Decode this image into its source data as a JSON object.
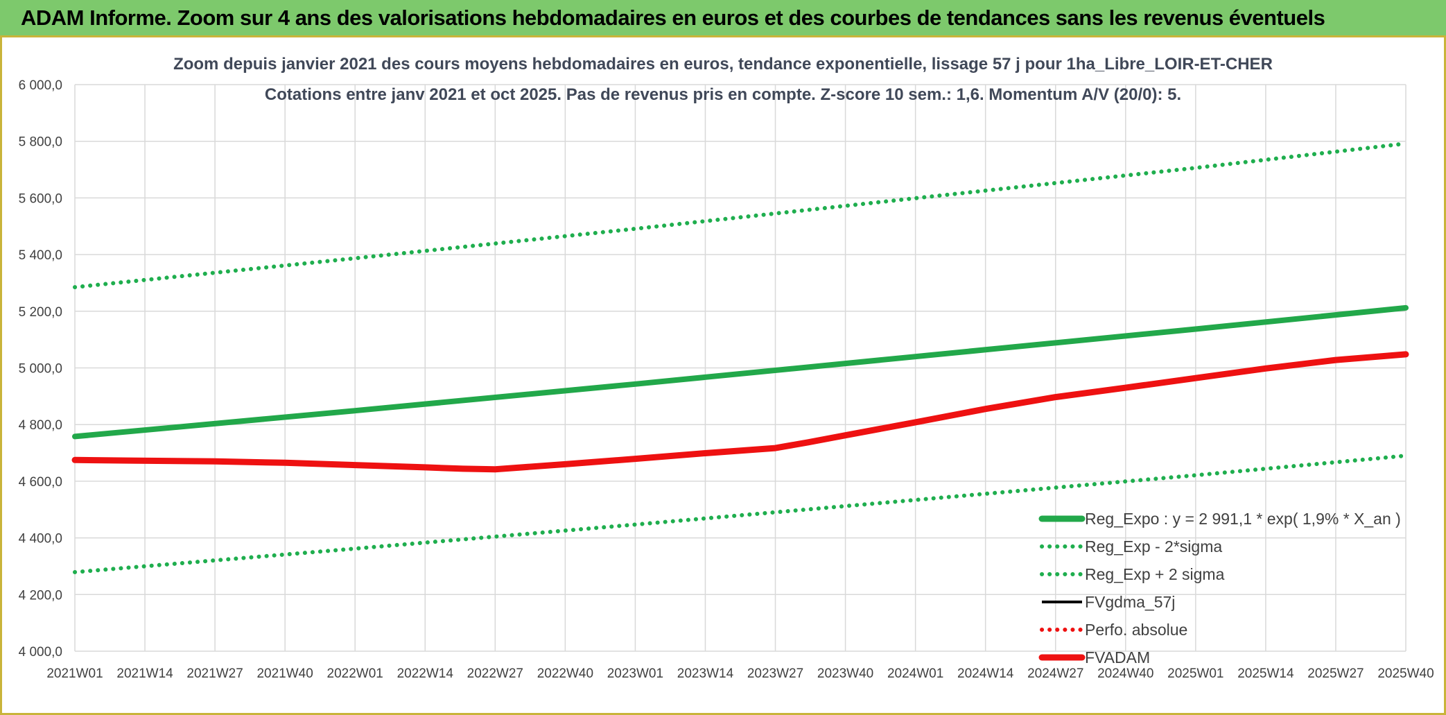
{
  "header": {
    "banner_title": "ADAM Informe. Zoom sur 4 ans des valorisations hebdomadaires en euros et des courbes de tendances sans les revenus éventuels"
  },
  "colors": {
    "banner_bg": "#7dc96c",
    "green": "#22a84a",
    "green_dotted": "#1fae4e",
    "red": "#ee1111",
    "black": "#000000",
    "grid": "#d9d9d9"
  },
  "chart_data": {
    "type": "line",
    "title_lines": [
      "Zoom depuis janvier 2021 des cours moyens hebdomadaires en euros, tendance exponentielle, lissage 57 j pour 1ha_Libre_LOIR-ET-CHER",
      "Cotations entre janv 2021 et oct 2025. Pas de revenus pris en compte. Z-score 10 sem.: 1,6. Momentum A/V (20/0): 5."
    ],
    "ylim": [
      4000,
      6000
    ],
    "y_ticks": [
      "4 000,0",
      "4 200,0",
      "4 400,0",
      "4 600,0",
      "4 800,0",
      "5 000,0",
      "5 200,0",
      "5 400,0",
      "5 600,0",
      "5 800,0",
      "6 000,0"
    ],
    "y_tick_values": [
      4000,
      4200,
      4400,
      4600,
      4800,
      5000,
      5200,
      5400,
      5600,
      5800,
      6000
    ],
    "x_ticks": [
      "2021W01",
      "2021W14",
      "2021W27",
      "2021W40",
      "2022W01",
      "2022W14",
      "2022W27",
      "2022W40",
      "2023W01",
      "2023W14",
      "2023W27",
      "2023W40",
      "2024W01",
      "2024W14",
      "2024W27",
      "2024W40",
      "2025W01",
      "2025W14",
      "2025W27",
      "2025W40"
    ],
    "x_tick_index": [
      0,
      13,
      26,
      39,
      52,
      65,
      78,
      91,
      104,
      117,
      130,
      143,
      156,
      169,
      182,
      195,
      208,
      221,
      234,
      247
    ],
    "x_max_index": 247,
    "series": [
      {
        "name": "Reg_Expo : y = 2 991,1 * exp( 1,9% *  X_an )",
        "style": "solid-thick",
        "color": "#22a84a",
        "x": [
          0,
          52,
          104,
          156,
          208,
          247
        ],
        "values": [
          4758,
          4849,
          4943,
          5040,
          5137,
          5212
        ]
      },
      {
        "name": "Reg_Exp - 2*sigma",
        "style": "dotted",
        "color": "#1fae4e",
        "x": [
          0,
          52,
          104,
          156,
          208,
          247
        ],
        "values": [
          4279,
          4362,
          4447,
          4534,
          4621,
          4690
        ]
      },
      {
        "name": "Reg_Exp + 2 sigma",
        "style": "dotted",
        "color": "#1fae4e",
        "x": [
          0,
          52,
          104,
          156,
          208,
          247
        ],
        "values": [
          5285,
          5387,
          5491,
          5599,
          5706,
          5792
        ]
      },
      {
        "name": "FVgdma_57j",
        "style": "solid",
        "color": "#000000",
        "x": [
          0,
          10,
          26,
          39,
          52,
          65,
          72,
          78,
          91,
          104,
          117,
          130,
          136,
          143,
          156,
          169,
          182,
          195,
          208,
          221,
          234,
          247
        ],
        "values": [
          4675,
          4673,
          4670,
          4665,
          4658,
          4650,
          4645,
          4643,
          4660,
          4680,
          4700,
          4722,
          4740,
          4763,
          4808,
          4856,
          4897,
          4930,
          4964,
          4998,
          5028,
          5048
        ]
      },
      {
        "name": "Perfo. absolue",
        "style": "dotted",
        "color": "#ee1111",
        "x": [],
        "values": []
      },
      {
        "name": "FVADAM",
        "style": "solid-thick",
        "color": "#ee1111",
        "x": [
          0,
          10,
          26,
          39,
          52,
          65,
          72,
          78,
          91,
          104,
          117,
          130,
          136,
          143,
          156,
          169,
          182,
          195,
          208,
          221,
          234,
          247
        ],
        "values": [
          4675,
          4673,
          4670,
          4665,
          4657,
          4649,
          4644,
          4642,
          4660,
          4679,
          4699,
          4717,
          4737,
          4762,
          4808,
          4855,
          4897,
          4930,
          4964,
          4998,
          5028,
          5048
        ]
      }
    ],
    "legend": [
      "Reg_Expo : y = 2 991,1 * exp( 1,9% *  X_an )",
      "Reg_Exp - 2*sigma",
      "Reg_Exp + 2 sigma",
      "FVgdma_57j",
      "Perfo. absolue",
      "FVADAM"
    ],
    "legend_position": "bottom-right inside plot",
    "grid": true
  }
}
